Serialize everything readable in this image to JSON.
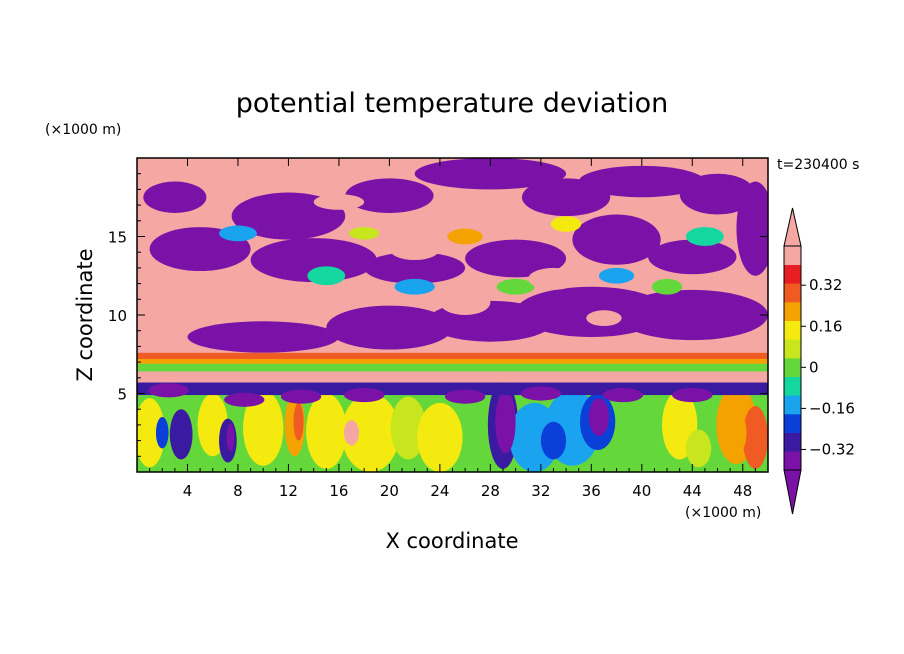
{
  "chart_data": {
    "type": "heatmap",
    "title": "potential temperature deviation",
    "xlabel": "X coordinate",
    "ylabel": "Z coordinate",
    "x_unit": "(×1000 m)",
    "y_unit": "(×1000 m)",
    "time_label": "t=230400 s",
    "xlim": [
      0,
      50
    ],
    "ylim": [
      0,
      20
    ],
    "x_ticks": [
      4,
      8,
      12,
      16,
      20,
      24,
      28,
      32,
      36,
      40,
      44,
      48
    ],
    "y_ticks": [
      5,
      10,
      15
    ],
    "colorbar": {
      "levels": [
        -0.4,
        -0.32,
        -0.24,
        -0.16,
        -0.08,
        0,
        0.08,
        0.16,
        0.24,
        0.32,
        0.4
      ],
      "labels": [
        "0.32",
        "0.16",
        "0",
        "−0.16",
        "−0.32"
      ],
      "label_values": [
        0.32,
        0.16,
        0,
        -0.16,
        -0.32
      ],
      "colors": [
        "#7b12a8",
        "#3a1aa0",
        "#0a3fd8",
        "#1aa4f0",
        "#14d7a0",
        "#64d83a",
        "#c8e61e",
        "#f5ea10",
        "#f3a200",
        "#ef5b23",
        "#e81e25",
        "#f4a7a3"
      ],
      "under_color": "#7b12a8",
      "over_color": "#f4a7a3"
    },
    "field_description_layers": [
      {
        "name": "upper band",
        "z_range": [
          7,
          20
        ],
        "dominant": [
          "#f4a7a3",
          "#7b12a8"
        ]
      },
      {
        "name": "inversion",
        "z_range": [
          5.5,
          7.5
        ],
        "dominant": [
          "#ef5b23",
          "#f4a7a3",
          "#64d83a"
        ]
      },
      {
        "name": "boundary layer",
        "z_range": [
          0,
          5.5
        ],
        "dominant": [
          "#64d83a",
          "#f5ea10",
          "#1aa4f0",
          "#3a1aa0"
        ]
      }
    ]
  }
}
